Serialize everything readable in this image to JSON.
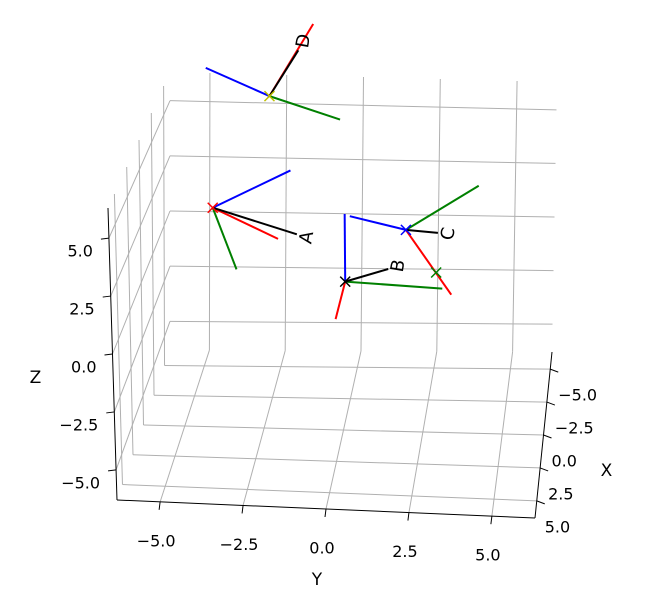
{
  "chart_data": {
    "type": "frames3d",
    "xlabel": "X",
    "ylabel": "Y",
    "zlabel": "Z",
    "xlim": [
      -6.3,
      6.3
    ],
    "ylim": [
      -6.3,
      6.3
    ],
    "zlim": [
      -6.3,
      6.3
    ],
    "xticks": [
      {
        "value": -5,
        "label": "−5.0"
      },
      {
        "value": -2.5,
        "label": "−2.5"
      },
      {
        "value": 0,
        "label": "0.0"
      },
      {
        "value": 2.5,
        "label": "2.5"
      },
      {
        "value": 5,
        "label": "5.0"
      }
    ],
    "yticks": [
      {
        "value": -5,
        "label": "−5.0"
      },
      {
        "value": -2.5,
        "label": "−2.5"
      },
      {
        "value": 0,
        "label": "0.0"
      },
      {
        "value": 2.5,
        "label": "2.5"
      },
      {
        "value": 5,
        "label": "5.0"
      }
    ],
    "zticks": [
      {
        "value": -5,
        "label": "−5.0"
      },
      {
        "value": -2.5,
        "label": "−2.5"
      },
      {
        "value": 0,
        "label": "0.0"
      },
      {
        "value": 2.5,
        "label": "2.5"
      },
      {
        "value": 5,
        "label": "5.0"
      }
    ],
    "grid": true,
    "axis_colors": [
      "#ff0000",
      "#008000",
      "#0000ff"
    ],
    "pointer_color": "#000000",
    "frames": [
      {
        "name": "A",
        "origin": [
          0,
          -4.03,
          3.41
        ],
        "x_axis": [
          0,
          -2.0,
          2.12
        ],
        "y_axis": [
          0,
          -3.31,
          0.71
        ],
        "z_axis": [
          0,
          -1.59,
          5.18
        ],
        "pointer": [
          0,
          -1.41,
          2.35
        ],
        "marker_color": "#ff0000"
      },
      {
        "name": "B",
        "origin": [
          0,
          0.09,
          0.31
        ],
        "x_axis": [
          0,
          -0.22,
          -1.37
        ],
        "y_axis": [
          0,
          3.13,
          0.13
        ],
        "z_axis": [
          0,
          0.09,
          3.32
        ],
        "pointer": [
          0,
          1.44,
          0.93
        ],
        "marker_color": "#000000"
      },
      {
        "name": "C",
        "origin": [
          0,
          2.0,
          2.7
        ],
        "x_axis": [
          0,
          3.41,
          -0.13
        ],
        "y_axis": [
          0,
          4.28,
          4.78
        ],
        "z_axis": [
          0,
          0.25,
          3.23
        ],
        "pointer": [
          0,
          3.0,
          2.61
        ],
        "marker_color": "#0000ff"
      },
      {
        "name": "D",
        "origin": [
          0,
          -2.22,
          8.45
        ],
        "x_axis": [
          0,
          -0.84,
          11.73
        ],
        "y_axis": [
          0,
          -0.03,
          7.52
        ],
        "z_axis": [
          0,
          -4.19,
          9.6
        ],
        "pointer": [
          0,
          -1.31,
          10.53
        ],
        "marker_color": "#bfbf00"
      }
    ],
    "markers": [
      {
        "color": "#008000",
        "position": [
          0,
          2.94,
          0.84
        ]
      }
    ]
  }
}
